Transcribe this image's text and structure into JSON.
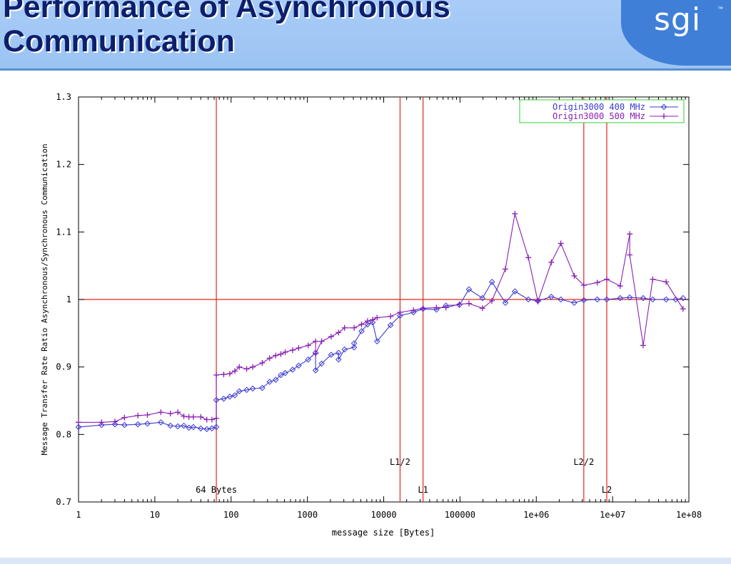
{
  "slide": {
    "title_line1": "Performance of Asynchronous",
    "title_line2": "Communication",
    "logo_text": "sgi",
    "logo_tm": "™",
    "colors": {
      "header": "#9bc3f3",
      "title": "#0d1f6b",
      "logo_panel": "#3f7fd8"
    }
  },
  "chart_data": {
    "type": "line",
    "xlabel": "message size [Bytes]",
    "ylabel": "Message Transfer Rate Ratio Asynchronous/Synchronous Communication",
    "x_scale": "log",
    "xlim": [
      1,
      100000000
    ],
    "ylim": [
      0.7,
      1.3
    ],
    "x_ticks": [
      1,
      10,
      100,
      1000,
      10000,
      100000,
      1000000,
      10000000,
      100000000
    ],
    "x_tick_labels": [
      "1",
      "10",
      "100",
      "1000",
      "10000",
      "100000",
      "1e+06",
      "1e+07",
      "1e+08"
    ],
    "y_ticks": [
      0.7,
      0.8,
      0.9,
      1.0,
      1.1,
      1.2,
      1.3
    ],
    "y_tick_labels": [
      "0.7",
      "0.8",
      "0.9",
      "1",
      "1.1",
      "1.2",
      "1.3"
    ],
    "grid": false,
    "legend_position": "top-right",
    "reference_line_y": 1.0,
    "reference_color": "#e8241c",
    "vlines": [
      {
        "x": 64,
        "label": "64 Bytes",
        "label_pos": "low"
      },
      {
        "x": 16384,
        "label": "L1/2",
        "label_pos": "mid"
      },
      {
        "x": 32768,
        "label": "L1",
        "label_pos": "low"
      },
      {
        "x": 4194304,
        "label": "L2/2",
        "label_pos": "mid"
      },
      {
        "x": 8388608,
        "label": "L2",
        "label_pos": "low"
      }
    ],
    "series": [
      {
        "name": "Origin3000 400 MHz",
        "color": "#3a3ad6",
        "marker": "diamond",
        "points": [
          [
            1,
            0.811
          ],
          [
            2,
            0.814
          ],
          [
            3,
            0.815
          ],
          [
            4,
            0.814
          ],
          [
            6,
            0.815
          ],
          [
            8,
            0.816
          ],
          [
            12,
            0.818
          ],
          [
            16,
            0.813
          ],
          [
            20,
            0.812
          ],
          [
            24,
            0.813
          ],
          [
            28,
            0.81
          ],
          [
            32,
            0.811
          ],
          [
            40,
            0.809
          ],
          [
            48,
            0.808
          ],
          [
            56,
            0.809
          ],
          [
            64,
            0.811
          ],
          [
            64,
            0.851
          ],
          [
            80,
            0.853
          ],
          [
            96,
            0.856
          ],
          [
            112,
            0.858
          ],
          [
            128,
            0.864
          ],
          [
            160,
            0.866
          ],
          [
            192,
            0.868
          ],
          [
            256,
            0.869
          ],
          [
            320,
            0.878
          ],
          [
            384,
            0.881
          ],
          [
            448,
            0.888
          ],
          [
            512,
            0.891
          ],
          [
            640,
            0.896
          ],
          [
            768,
            0.902
          ],
          [
            1024,
            0.911
          ],
          [
            1280,
            0.921
          ],
          [
            1280,
            0.895
          ],
          [
            1536,
            0.905
          ],
          [
            2048,
            0.918
          ],
          [
            2560,
            0.921
          ],
          [
            2560,
            0.911
          ],
          [
            3072,
            0.926
          ],
          [
            4096,
            0.929
          ],
          [
            4096,
            0.935
          ],
          [
            5120,
            0.953
          ],
          [
            6144,
            0.963
          ],
          [
            7168,
            0.966
          ],
          [
            8192,
            0.938
          ],
          [
            12288,
            0.962
          ],
          [
            16384,
            0.976
          ],
          [
            24576,
            0.981
          ],
          [
            32768,
            0.986
          ],
          [
            49152,
            0.985
          ],
          [
            65536,
            0.991
          ],
          [
            98304,
            0.992
          ],
          [
            131072,
            1.015
          ],
          [
            196608,
            1.002
          ],
          [
            262144,
            1.026
          ],
          [
            393216,
            0.995
          ],
          [
            524288,
            1.012
          ],
          [
            786432,
            1.0
          ],
          [
            1048576,
            0.998
          ],
          [
            1572864,
            1.004
          ],
          [
            2097152,
            1.0
          ],
          [
            3145728,
            0.995
          ],
          [
            4194304,
            0.999
          ],
          [
            6291456,
            1.0
          ],
          [
            8388608,
            1.0
          ],
          [
            12582912,
            1.002
          ],
          [
            16777216,
            1.003
          ],
          [
            25165824,
            1.002
          ],
          [
            33554432,
            1.0
          ],
          [
            50331648,
            1.0
          ],
          [
            67108864,
            1.0
          ],
          [
            83886080,
            1.002
          ]
        ]
      },
      {
        "name": "Origin3000 500 MHz",
        "color": "#8a1fb3",
        "marker": "plus",
        "points": [
          [
            1,
            0.818
          ],
          [
            2,
            0.818
          ],
          [
            3,
            0.819
          ],
          [
            4,
            0.825
          ],
          [
            6,
            0.828
          ],
          [
            8,
            0.829
          ],
          [
            12,
            0.833
          ],
          [
            16,
            0.831
          ],
          [
            20,
            0.833
          ],
          [
            24,
            0.827
          ],
          [
            28,
            0.826
          ],
          [
            32,
            0.826
          ],
          [
            40,
            0.826
          ],
          [
            48,
            0.822
          ],
          [
            56,
            0.822
          ],
          [
            64,
            0.824
          ],
          [
            64,
            0.888
          ],
          [
            80,
            0.889
          ],
          [
            96,
            0.89
          ],
          [
            112,
            0.894
          ],
          [
            128,
            0.9
          ],
          [
            160,
            0.897
          ],
          [
            192,
            0.9
          ],
          [
            256,
            0.906
          ],
          [
            320,
            0.913
          ],
          [
            384,
            0.917
          ],
          [
            448,
            0.919
          ],
          [
            512,
            0.922
          ],
          [
            640,
            0.925
          ],
          [
            768,
            0.928
          ],
          [
            1024,
            0.932
          ],
          [
            1280,
            0.938
          ],
          [
            1280,
            0.92
          ],
          [
            1536,
            0.938
          ],
          [
            2048,
            0.945
          ],
          [
            2560,
            0.951
          ],
          [
            3072,
            0.958
          ],
          [
            4096,
            0.958
          ],
          [
            5120,
            0.963
          ],
          [
            6144,
            0.968
          ],
          [
            7168,
            0.97
          ],
          [
            8192,
            0.973
          ],
          [
            12288,
            0.975
          ],
          [
            16384,
            0.981
          ],
          [
            24576,
            0.984
          ],
          [
            32768,
            0.987
          ],
          [
            49152,
            0.988
          ],
          [
            65536,
            0.988
          ],
          [
            98304,
            0.993
          ],
          [
            131072,
            0.994
          ],
          [
            196608,
            0.987
          ],
          [
            262144,
            0.998
          ],
          [
            393216,
            1.045
          ],
          [
            524288,
            1.127
          ],
          [
            786432,
            1.062
          ],
          [
            1048576,
            0.997
          ],
          [
            1572864,
            1.055
          ],
          [
            2097152,
            1.083
          ],
          [
            3145728,
            1.035
          ],
          [
            4194304,
            1.021
          ],
          [
            6291456,
            1.025
          ],
          [
            8388608,
            1.03
          ],
          [
            12582912,
            1.02
          ],
          [
            16777216,
            1.097
          ],
          [
            16777216,
            1.066
          ],
          [
            25165824,
            0.932
          ],
          [
            33554432,
            1.03
          ],
          [
            50331648,
            1.026
          ],
          [
            83886080,
            0.986
          ]
        ]
      }
    ]
  }
}
